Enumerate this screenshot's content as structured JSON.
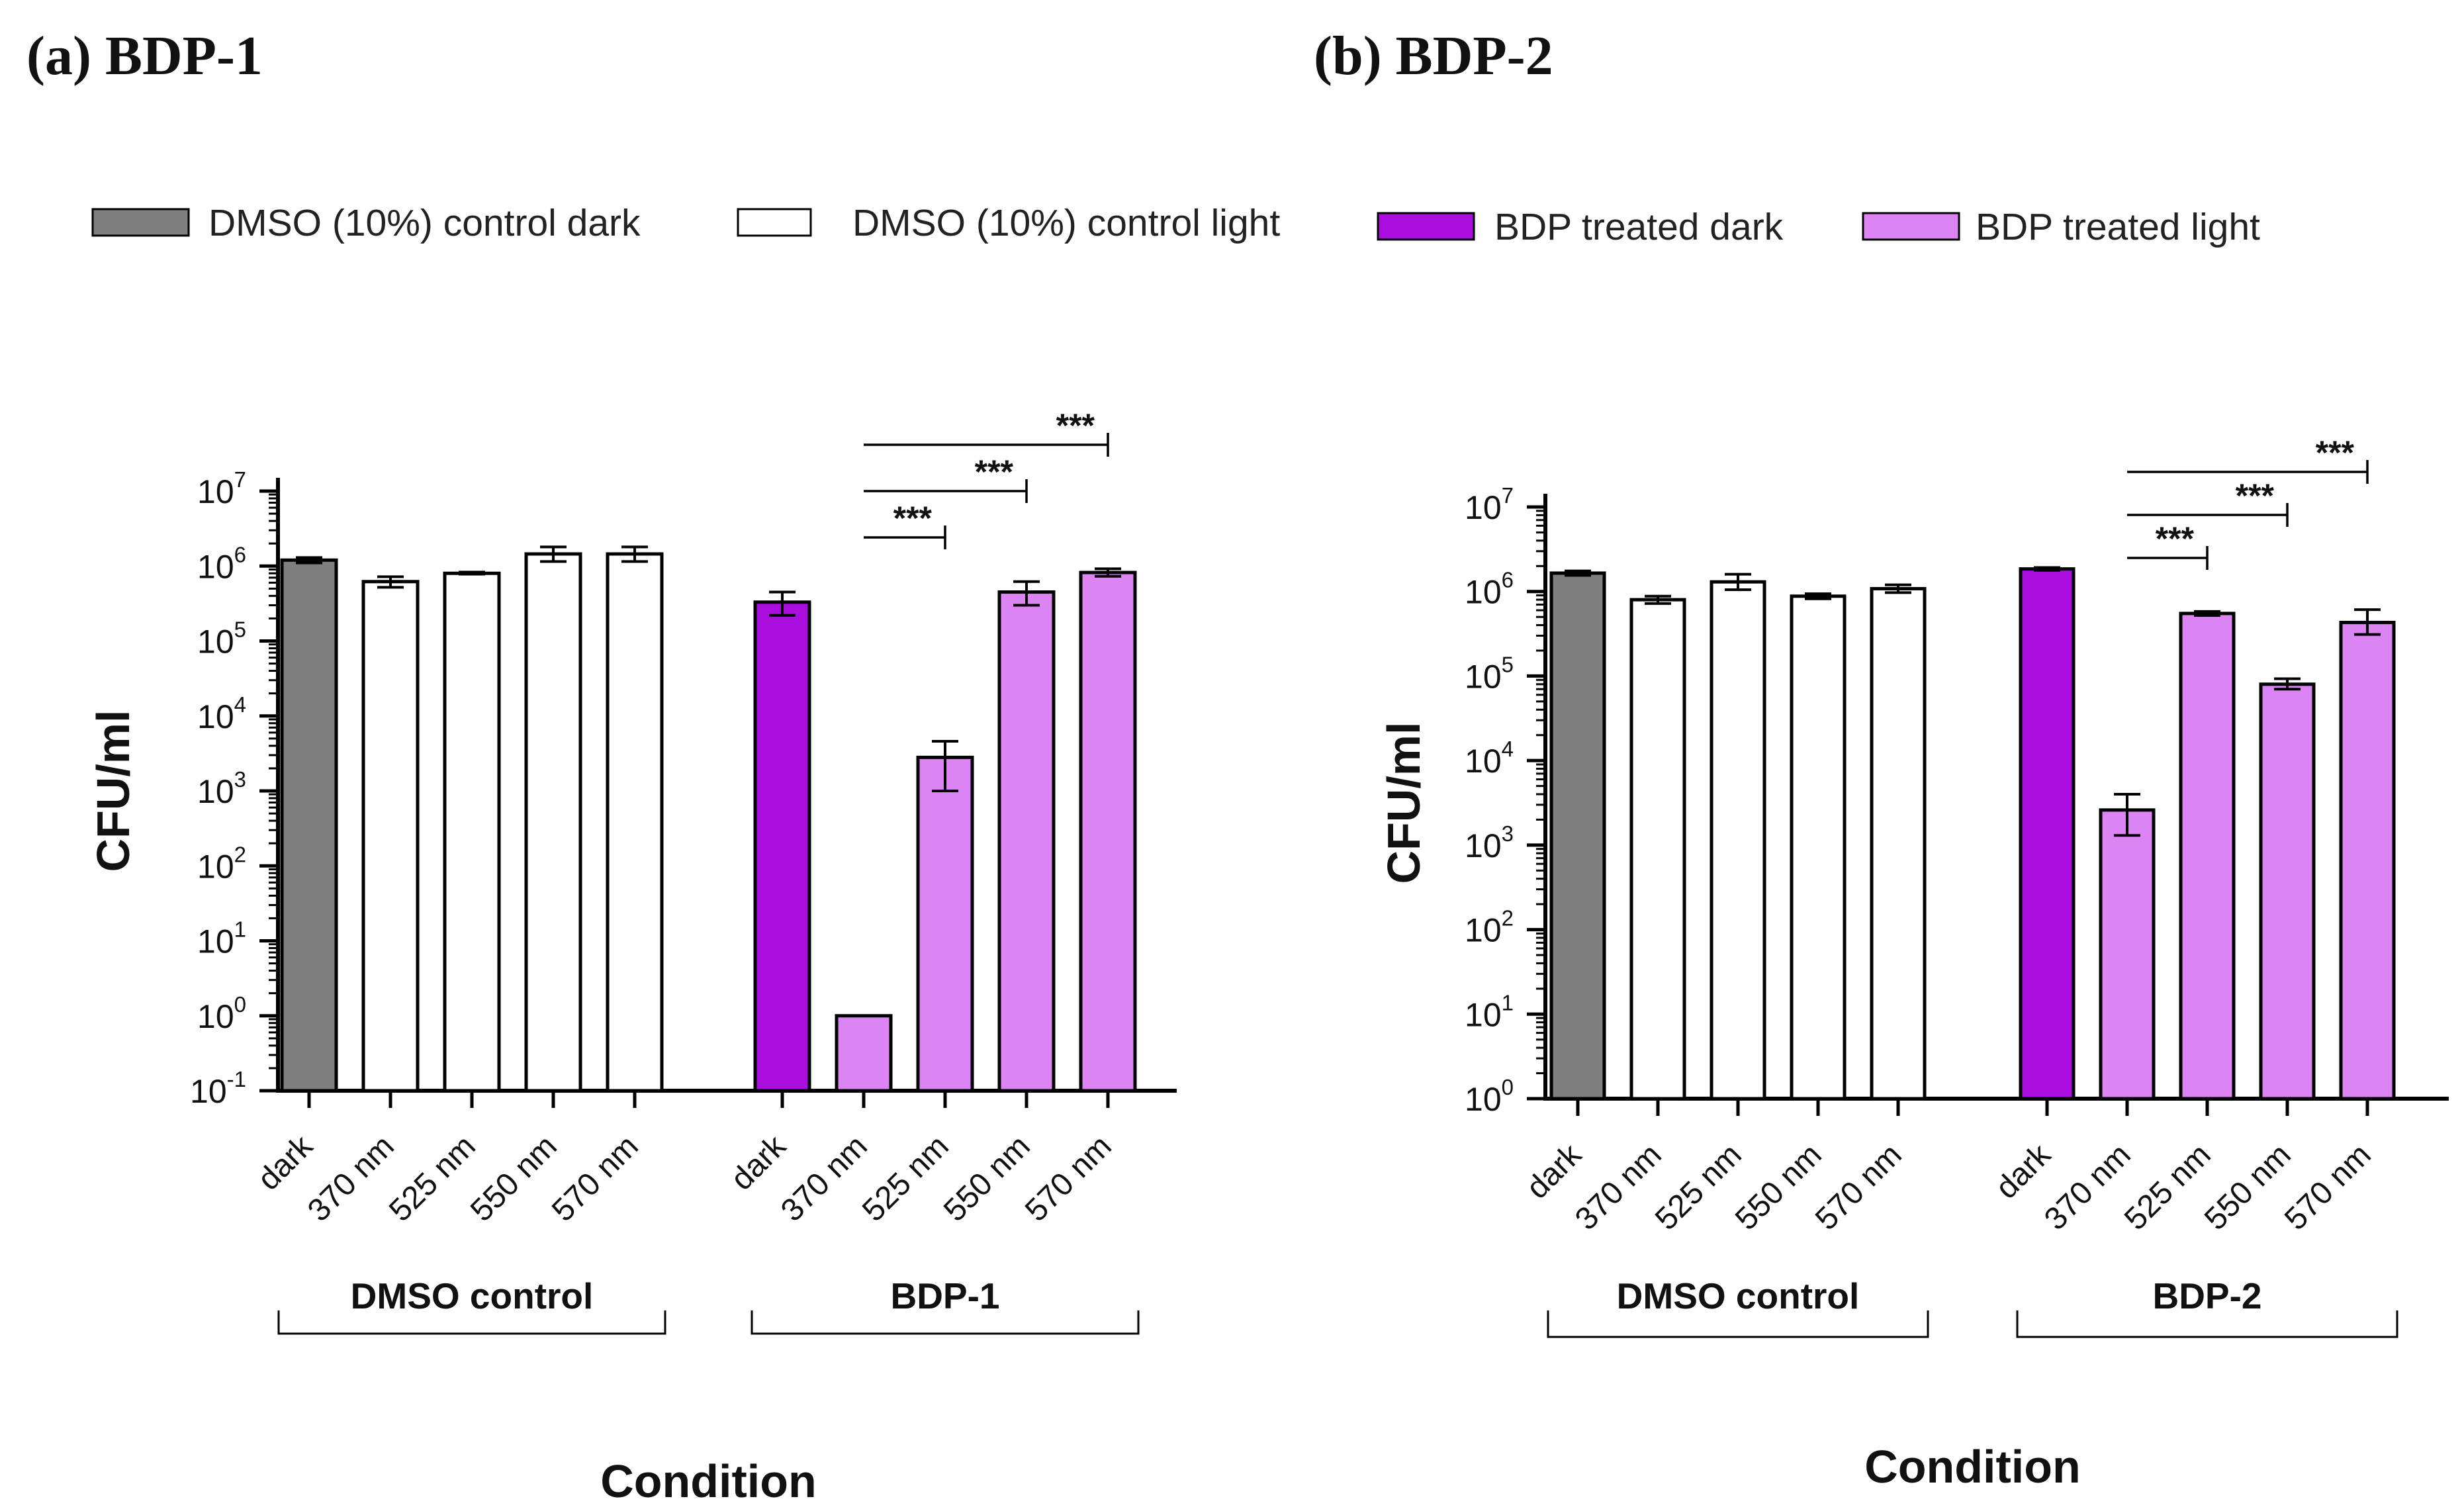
{
  "legend": [
    {
      "key": "control_dark",
      "label": "DMSO (10%) control dark",
      "color": "#7f7f7f"
    },
    {
      "key": "control_light",
      "label": "DMSO (10%) control light",
      "color": "#ffffff"
    },
    {
      "key": "treated_dark",
      "label": "BDP treated dark",
      "color": "#aa0de0"
    },
    {
      "key": "treated_light",
      "label": "BDP treated light",
      "color": "#dc84f3"
    }
  ],
  "chart_data": [
    {
      "type": "bar",
      "panel_label": "(a) BDP-1",
      "ylabel": "CFU/ml",
      "xlabel": "Condition",
      "yscale": "log",
      "ylim_exponent": [
        -1,
        7
      ],
      "ytick_exponents": [
        -1,
        0,
        1,
        2,
        3,
        4,
        5,
        6,
        7
      ],
      "categories": [
        "dark",
        "370 nm",
        "525 nm",
        "550 nm",
        "570 nm",
        "dark",
        "370 nm",
        "525 nm",
        "550 nm",
        "570 nm"
      ],
      "groups": [
        {
          "label": "DMSO control",
          "indices": [
            0,
            1,
            2,
            3,
            4
          ]
        },
        {
          "label": "BDP-1",
          "indices": [
            5,
            6,
            7,
            8,
            9
          ]
        }
      ],
      "series_keys": [
        "control_dark",
        "control_light",
        "control_light",
        "control_light",
        "control_light",
        "treated_dark",
        "treated_light",
        "treated_light",
        "treated_light",
        "treated_light"
      ],
      "values": [
        1200000,
        620000,
        800000,
        1450000,
        1450000,
        330000,
        1,
        2800,
        450000,
        820000
      ],
      "error_low": [
        1100000,
        520000,
        780000,
        1150000,
        1150000,
        220000,
        null,
        1000,
        300000,
        730000
      ],
      "error_high": [
        1300000,
        720000,
        830000,
        1800000,
        1800000,
        450000,
        null,
        4600,
        620000,
        920000
      ],
      "significance": [
        {
          "from": 6,
          "to": 7,
          "label": "***"
        },
        {
          "from": 6,
          "to": 8,
          "label": "***"
        },
        {
          "from": 6,
          "to": 9,
          "label": "***"
        }
      ]
    },
    {
      "type": "bar",
      "panel_label": "(b) BDP-2",
      "ylabel": "CFU/ml",
      "xlabel": "Condition",
      "yscale": "log",
      "ylim_exponent": [
        0,
        7
      ],
      "ytick_exponents": [
        0,
        1,
        2,
        3,
        4,
        5,
        6,
        7
      ],
      "categories": [
        "dark",
        "370 nm",
        "525 nm",
        "550 nm",
        "570 nm",
        "dark",
        "370 nm",
        "525 nm",
        "550 nm",
        "570 nm"
      ],
      "groups": [
        {
          "label": "DMSO control",
          "indices": [
            0,
            1,
            2,
            3,
            4
          ]
        },
        {
          "label": "BDP-2",
          "indices": [
            5,
            6,
            7,
            8,
            9
          ]
        }
      ],
      "series_keys": [
        "control_dark",
        "control_light",
        "control_light",
        "control_light",
        "control_light",
        "treated_dark",
        "treated_light",
        "treated_light",
        "treated_light",
        "treated_light"
      ],
      "values": [
        1650000,
        800000,
        1300000,
        880000,
        1080000,
        1850000,
        2600,
        550000,
        80000,
        430000
      ],
      "error_low": [
        1550000,
        720000,
        1050000,
        820000,
        970000,
        1780000,
        1300,
        520000,
        70000,
        310000
      ],
      "error_high": [
        1750000,
        880000,
        1600000,
        940000,
        1200000,
        1920000,
        4000,
        580000,
        93000,
        610000
      ],
      "significance": [
        {
          "from": 6,
          "to": 7,
          "label": "***"
        },
        {
          "from": 6,
          "to": 8,
          "label": "***"
        },
        {
          "from": 6,
          "to": 9,
          "label": "***"
        }
      ]
    }
  ]
}
